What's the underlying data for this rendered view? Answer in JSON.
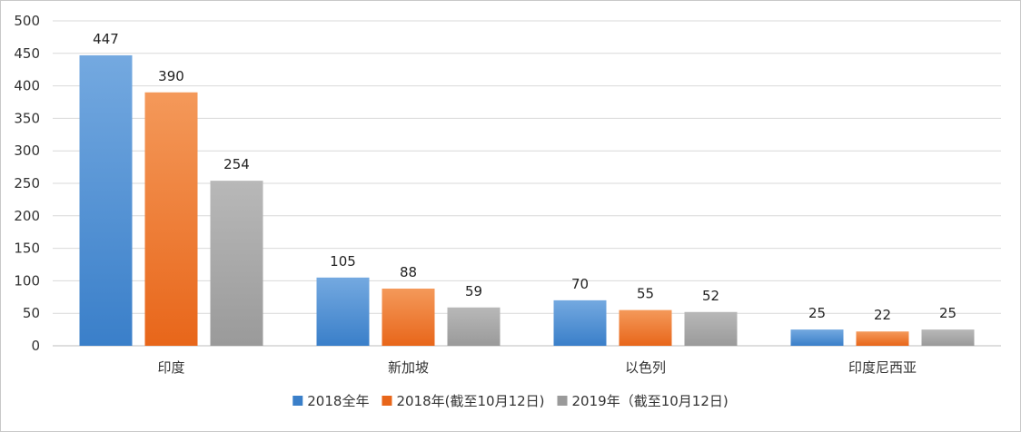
{
  "chart_data": {
    "type": "bar",
    "title": "",
    "xlabel": "",
    "ylabel": "",
    "ylim": [
      0,
      500
    ],
    "yticks": [
      0,
      50,
      100,
      150,
      200,
      250,
      300,
      350,
      400,
      450,
      500
    ],
    "grid": true,
    "legend_position": "bottom",
    "categories": [
      "印度",
      "新加坡",
      "以色列",
      "印度尼西亚"
    ],
    "series": [
      {
        "name": "2018全年",
        "values": [
          447,
          105,
          70,
          25
        ],
        "color_top": "#74a9e0",
        "color_bottom": "#3a7fc9"
      },
      {
        "name": "2018年(截至10月12日)",
        "values": [
          390,
          88,
          55,
          22
        ],
        "color_top": "#f4995a",
        "color_bottom": "#e8661a"
      },
      {
        "name": "2019年（截至10月12日)",
        "values": [
          254,
          59,
          52,
          25
        ],
        "color_top": "#b8b8b8",
        "color_bottom": "#9a9a9a"
      }
    ]
  }
}
